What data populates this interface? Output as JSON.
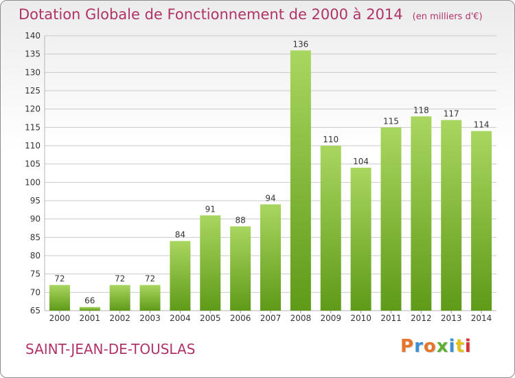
{
  "title": "Dotation Globale de Fonctionnement de 2000 à 2014",
  "subtitle": "(en milliers d'€)",
  "commune": "SAINT-JEAN-DE-TOUSLAS",
  "logo": {
    "text": "Proxiti",
    "colors": [
      "#e8732a",
      "#3c8fd6",
      "#e8732a",
      "#5cb030",
      "#3c8fd6",
      "#e3c21c",
      "#d9312b"
    ]
  },
  "colors": {
    "title": "#b03366",
    "bar_light": "#a9d660",
    "bar_dark": "#5f9a18",
    "grid": "#c9c9c9",
    "axis_text": "#333333"
  },
  "chart_data": {
    "type": "bar",
    "title": "Dotation Globale de Fonctionnement de 2000 à 2014",
    "subtitle": "(en milliers d'€)",
    "categories": [
      "2000",
      "2001",
      "2002",
      "2003",
      "2004",
      "2005",
      "2006",
      "2007",
      "2008",
      "2009",
      "2010",
      "2011",
      "2012",
      "2013",
      "2014"
    ],
    "values": [
      72,
      66,
      72,
      72,
      84,
      91,
      88,
      94,
      136,
      110,
      104,
      115,
      118,
      117,
      114
    ],
    "ylim": [
      65,
      140
    ],
    "yticks": [
      65,
      70,
      75,
      80,
      85,
      90,
      95,
      100,
      105,
      110,
      115,
      120,
      125,
      130,
      135,
      140
    ],
    "grid": true,
    "xlabel": "",
    "ylabel": ""
  }
}
